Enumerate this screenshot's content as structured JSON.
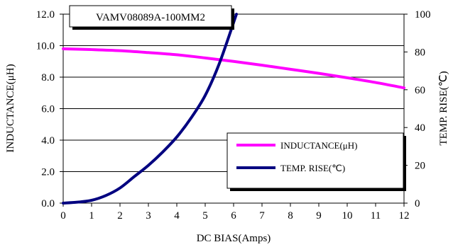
{
  "chart_data": {
    "type": "line",
    "title": "VAMV08089A-100MM2",
    "xlabel": "DC BIAS(Amps)",
    "ylabel": "INDUCTANCE(μH)",
    "y2label": "TEMP. RISE(℃)",
    "xlim": [
      0,
      12
    ],
    "ylim": [
      0,
      12
    ],
    "y2lim": [
      0,
      100
    ],
    "x_ticks": [
      "0",
      "1",
      "2",
      "3",
      "4",
      "5",
      "6",
      "7",
      "8",
      "9",
      "10",
      "11",
      "12"
    ],
    "y_ticks": [
      "0.0",
      "2.0",
      "4.0",
      "6.0",
      "8.0",
      "10.0",
      "12.0"
    ],
    "y2_ticks": [
      "0",
      "20",
      "40",
      "60",
      "80",
      "100"
    ],
    "grid": "horizontal",
    "legend_position": "lower-right",
    "series": [
      {
        "name": "INDUCTANCE(μH)",
        "axis": "left",
        "color": "#ff00ff",
        "x": [
          0,
          1,
          2,
          3,
          4,
          5,
          6,
          7,
          8,
          9,
          10,
          11,
          12
        ],
        "y": [
          9.8,
          9.75,
          9.68,
          9.56,
          9.42,
          9.22,
          9.0,
          8.76,
          8.5,
          8.24,
          7.96,
          7.66,
          7.32
        ]
      },
      {
        "name": "TEMP. RISE(℃)",
        "axis": "right",
        "color": "#000080",
        "x": [
          0,
          0.5,
          1,
          1.5,
          2,
          2.5,
          3,
          3.5,
          4,
          4.5,
          5,
          5.5,
          6.1
        ],
        "y": [
          0,
          0.5,
          1.5,
          4,
          8,
          14,
          20,
          27,
          35,
          45,
          57,
          74,
          100
        ]
      }
    ]
  }
}
